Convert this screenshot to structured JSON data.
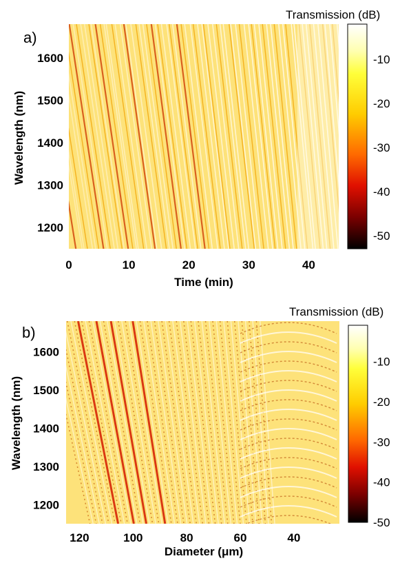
{
  "chart_data": [
    {
      "type": "heatmap",
      "panel_label": "a)",
      "xlabel": "Time (min)",
      "ylabel": "Wavelength (nm)",
      "xlim": [
        0,
        45
      ],
      "ylim": [
        1150,
        1680
      ],
      "x_ticks": [
        "0",
        "10",
        "20",
        "30",
        "40"
      ],
      "y_ticks": [
        "1200",
        "1300",
        "1400",
        "1500",
        "1600"
      ],
      "colorbar": {
        "title": "Transmission (dB)",
        "range": [
          -53,
          -2
        ],
        "ticks": [
          "-10",
          "-20",
          "-30",
          "-40",
          "-50"
        ],
        "colormap": "hot"
      }
    },
    {
      "type": "heatmap",
      "panel_label": "b)",
      "xlabel": "Diameter (μm)",
      "ylabel": "Wavelength (nm)",
      "xlim": [
        125,
        23
      ],
      "ylim": [
        1150,
        1680
      ],
      "x_ticks": [
        "120",
        "100",
        "80",
        "60",
        "40"
      ],
      "y_ticks": [
        "1200",
        "1300",
        "1400",
        "1500",
        "1600"
      ],
      "colorbar": {
        "title": "Transmission (dB)",
        "range": [
          -50,
          -1
        ],
        "ticks": [
          "-10",
          "-20",
          "-30",
          "-40",
          "-50"
        ],
        "colormap": "hot"
      }
    }
  ]
}
